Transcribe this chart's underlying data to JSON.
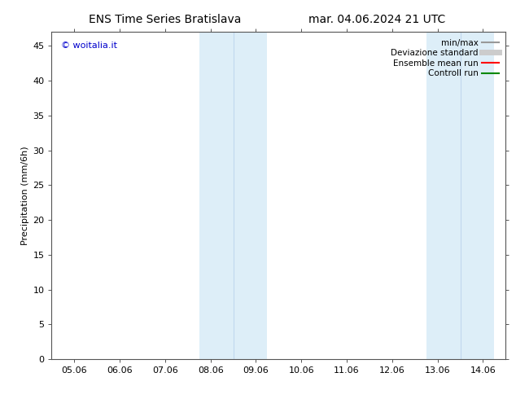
{
  "title": "ENS Time Series Bratislava",
  "title_right": "mar. 04.06.2024 21 UTC",
  "ylabel": "Precipitation (mm/6h)",
  "xlabel": "",
  "background_color": "#ffffff",
  "plot_bg_color": "#ffffff",
  "ylim": [
    0,
    47
  ],
  "yticks": [
    0,
    5,
    10,
    15,
    20,
    25,
    30,
    35,
    40,
    45
  ],
  "xtick_labels": [
    "05.06",
    "06.06",
    "07.06",
    "08.06",
    "09.06",
    "10.06",
    "11.06",
    "12.06",
    "13.06",
    "14.06"
  ],
  "xtick_positions": [
    0,
    1,
    2,
    3,
    4,
    5,
    6,
    7,
    8,
    9
  ],
  "xlim": [
    -0.5,
    9.5
  ],
  "shaded_bands": [
    {
      "x_start": 2.75,
      "x_end": 4.25,
      "color": "#ddeef8"
    },
    {
      "x_start": 7.75,
      "x_end": 9.25,
      "color": "#ddeef8"
    }
  ],
  "inner_lines": [
    {
      "x": 3.5,
      "color": "#c0d8ee",
      "lw": 0.8
    },
    {
      "x": 8.5,
      "color": "#c0d8ee",
      "lw": 0.8
    }
  ],
  "watermark_text": "© woitalia.it",
  "watermark_color": "#0000cc",
  "legend_entries": [
    {
      "label": "min/max",
      "color": "#999999",
      "lw": 1.5,
      "style": "solid"
    },
    {
      "label": "Deviazione standard",
      "color": "#cccccc",
      "lw": 5,
      "style": "solid"
    },
    {
      "label": "Ensemble mean run",
      "color": "#ff0000",
      "lw": 1.5,
      "style": "solid"
    },
    {
      "label": "Controll run",
      "color": "#008800",
      "lw": 1.5,
      "style": "solid"
    }
  ],
  "font_size_title": 10,
  "font_size_ticks": 8,
  "font_size_ylabel": 8,
  "font_size_legend": 7.5,
  "font_size_watermark": 8,
  "spine_color": "#555555"
}
